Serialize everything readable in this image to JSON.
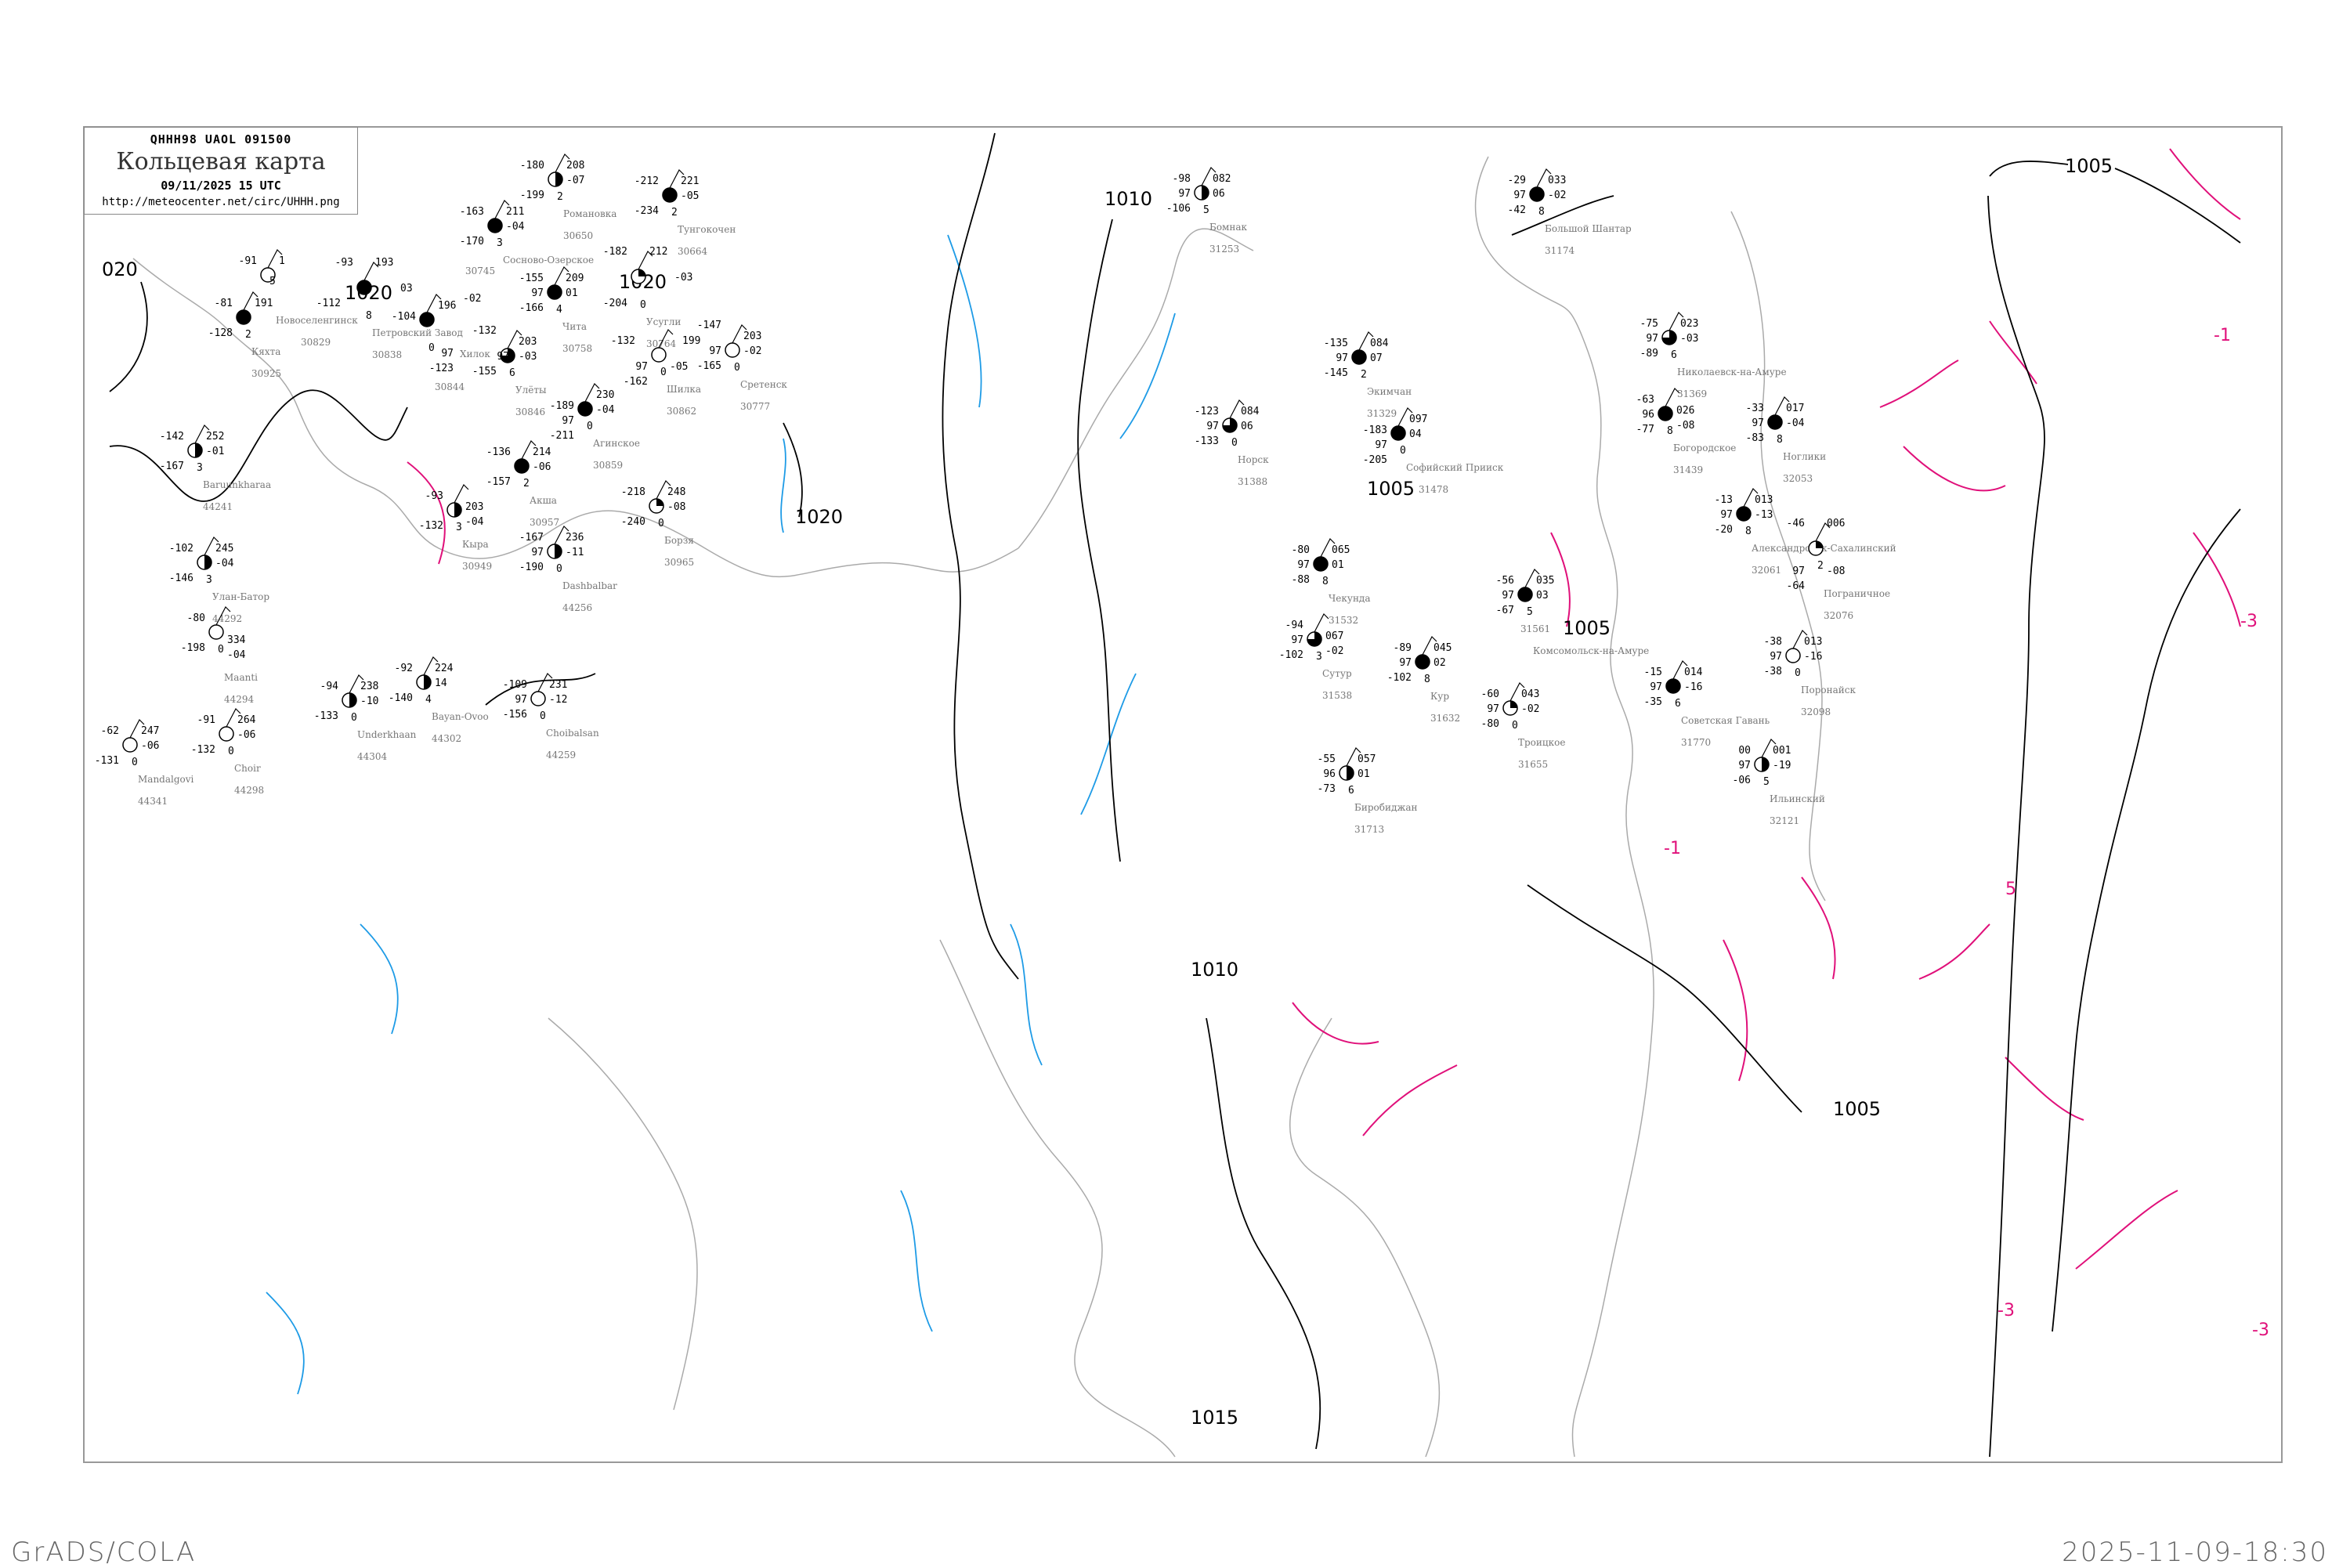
{
  "header": {
    "code": "QHHH98  UAOL  091500",
    "title": "Кольцевая карта",
    "date": "09/11/2025 15 UTC",
    "url": "http://meteocenter.net/circ/UHHH.png"
  },
  "footer": {
    "software": "GrADS/COLA",
    "timestamp": "2025-11-09-18:30"
  },
  "colors": {
    "isobar": "#000000",
    "isotherm": "#e0107a",
    "coast": "#999999",
    "rivers": "#1e9be6",
    "precip": "#3399ff"
  },
  "isobar_labels": [
    "020",
    "1020",
    "1020",
    "1020",
    "1010",
    "1005",
    "1005",
    "1010",
    "1015",
    "1005",
    "1005"
  ],
  "isotherm_labels": [
    "-1",
    "-3",
    "-1",
    "-3",
    "-3",
    "5"
  ],
  "stations": [
    {
      "name": "Кяхта",
      "id": "30925",
      "t": "-81",
      "p": "191",
      "v": "",
      "tend": "",
      "td": "-128",
      "ln": "2",
      "cover": "full"
    },
    {
      "name": "Новоселенгинск",
      "id": "30829",
      "t": "-91",
      "p": "1",
      "v": "",
      "tend": "",
      "td": "",
      "ln": "5",
      "cover": "empty"
    },
    {
      "name": "Петровский Завод",
      "id": "30838",
      "t": "-93",
      "p": "193",
      "v": "",
      "tend": "03",
      "td": "-112",
      "ln": "8",
      "cover": "full"
    },
    {
      "name": "Хилок",
      "id": "30844",
      "t": "-104",
      "p": "196",
      "v": "97",
      "tend": "-02",
      "td": "-123",
      "ln": "0",
      "cover": "full"
    },
    {
      "name": "Чита",
      "id": "30758",
      "t": "-155",
      "p": "209",
      "v": "97",
      "tend": "01",
      "td": "-166",
      "ln": "4",
      "cover": "full"
    },
    {
      "name": "Сосново-Озерское",
      "id": "30745",
      "t": "-163",
      "p": "211",
      "v": "",
      "tend": "-04",
      "td": "-170",
      "ln": "3",
      "cover": "full"
    },
    {
      "name": "Романовка",
      "id": "30650",
      "t": "-180",
      "p": "208",
      "v": "",
      "tend": "-07",
      "td": "-199",
      "ln": "2",
      "cover": "half"
    },
    {
      "name": "Тунгокочен",
      "id": "30664",
      "t": "-212",
      "p": "221",
      "v": "",
      "tend": "-05",
      "td": "-234",
      "ln": "2",
      "cover": "full"
    },
    {
      "name": "Усугли",
      "id": "30764",
      "t": "-182",
      "p": "212",
      "v": "",
      "tend": "-03",
      "td": "-204",
      "ln": "0",
      "cover": "quarter"
    },
    {
      "name": "Улёты",
      "id": "30846",
      "t": "-132",
      "p": "203",
      "v": "97",
      "tend": "-03",
      "td": "-155",
      "ln": "6",
      "cover": "three"
    },
    {
      "name": "Шилка",
      "id": "30862",
      "t": "-132",
      "p": "199",
      "v": "97",
      "tend": "-05",
      "td": "-162",
      "ln": "0",
      "cover": "empty"
    },
    {
      "name": "Сретенск",
      "id": "30777",
      "t": "-147",
      "p": "203",
      "v": "97",
      "tend": "-02",
      "td": "-165",
      "ln": "0",
      "cover": "empty"
    },
    {
      "name": "Агинское",
      "id": "30859",
      "t": "-189",
      "p": "230",
      "v": "97",
      "tend": "-04",
      "td": "-211",
      "ln": "0",
      "cover": "full"
    },
    {
      "name": "Акша",
      "id": "30957",
      "t": "-136",
      "p": "214",
      "v": "",
      "tend": "-06",
      "td": "-157",
      "ln": "2",
      "cover": "full"
    },
    {
      "name": "Кыра",
      "id": "30949",
      "t": "-93",
      "p": "203",
      "v": "",
      "tend": "-04",
      "td": "-132",
      "ln": "3",
      "cover": "half"
    },
    {
      "name": "Dashbalbar",
      "id": "44256",
      "t": "-167",
      "p": "236",
      "v": "97",
      "tend": "-11",
      "td": "-190",
      "ln": "0",
      "cover": "half"
    },
    {
      "name": "Борзя",
      "id": "30965",
      "t": "-218",
      "p": "248",
      "v": "",
      "tend": "-08",
      "td": "-240",
      "ln": "0",
      "cover": "quarter"
    },
    {
      "name": "Baruunkharaa",
      "id": "44241",
      "t": "-142",
      "p": "252",
      "v": "",
      "tend": "-01",
      "td": "-167",
      "ln": "3",
      "cover": "half"
    },
    {
      "name": "Улан-Батор",
      "id": "44292",
      "t": "-102",
      "p": "245",
      "v": "",
      "tend": "-04",
      "td": "-146",
      "ln": "3",
      "cover": "half"
    },
    {
      "name": "Maanti",
      "id": "44294",
      "t": "-80",
      "p": "334",
      "v": "",
      "tend": "-04",
      "td": "-198",
      "ln": "0",
      "cover": "empty"
    },
    {
      "name": "Underkhaan",
      "id": "44304",
      "t": "-94",
      "p": "238",
      "v": "",
      "tend": "-10",
      "td": "-133",
      "ln": "0",
      "cover": "half"
    },
    {
      "name": "Bayan-Ovoo",
      "id": "44302",
      "t": "-92",
      "p": "224",
      "v": "",
      "tend": "14",
      "td": "-140",
      "ln": "4",
      "cover": "half"
    },
    {
      "name": "Choibalsan",
      "id": "44259",
      "t": "-109",
      "p": "231",
      "v": "97",
      "tend": "-12",
      "td": "-156",
      "ln": "0",
      "cover": "empty"
    },
    {
      "name": "Mandalgovi",
      "id": "44341",
      "t": "-62",
      "p": "247",
      "v": "",
      "tend": "-06",
      "td": "-131",
      "ln": "0",
      "cover": "empty"
    },
    {
      "name": "Choir",
      "id": "44298",
      "t": "-91",
      "p": "264",
      "v": "",
      "tend": "-06",
      "td": "-132",
      "ln": "0",
      "cover": "empty"
    },
    {
      "name": "Бомнак",
      "id": "31253",
      "t": "-98",
      "p": "082",
      "v": "97",
      "tend": "06",
      "td": "-106",
      "ln": "5",
      "cover": "half"
    },
    {
      "name": "Экимчан",
      "id": "31329",
      "t": "-135",
      "p": "084",
      "v": "97",
      "tend": "07",
      "td": "-145",
      "ln": "2",
      "cover": "full"
    },
    {
      "name": "Норск",
      "id": "31388",
      "t": "-123",
      "p": "084",
      "v": "97",
      "tend": "06",
      "td": "-133",
      "ln": "0",
      "cover": "three"
    },
    {
      "name": "Большой Шантар",
      "id": "31174",
      "t": "-29",
      "p": "033",
      "v": "97",
      "tend": "-02",
      "td": "-42",
      "ln": "8",
      "cover": "full"
    },
    {
      "name": "Софийский Прииск",
      "id": "31478",
      "t": "-183",
      "p": "097",
      "v": "97",
      "tend": "04",
      "td": "-205",
      "ln": "0",
      "cover": "full"
    },
    {
      "name": "Николаевск-на-Амуре",
      "id": "31369",
      "t": "-75",
      "p": "023",
      "v": "97",
      "tend": "-03",
      "td": "-89",
      "ln": "6",
      "cover": "three"
    },
    {
      "name": "Богородское",
      "id": "31439",
      "t": "-63",
      "p": "026",
      "v": "96",
      "tend": "-08",
      "td": "-77",
      "ln": "8",
      "cover": "full"
    },
    {
      "name": "Чекунда",
      "id": "31532",
      "t": "-80",
      "p": "065",
      "v": "97",
      "tend": "01",
      "td": "-88",
      "ln": "8",
      "cover": "full"
    },
    {
      "name": "Комсомольск-на-Амуре",
      "id": "31561",
      "t": "-56",
      "p": "035",
      "v": "97",
      "tend": "03",
      "td": "-67",
      "ln": "5",
      "cover": "full"
    },
    {
      "name": "Кур",
      "id": "31632",
      "t": "-89",
      "p": "045",
      "v": "97",
      "tend": "02",
      "td": "-102",
      "ln": "8",
      "cover": "full"
    },
    {
      "name": "Сутур",
      "id": "31538",
      "t": "-94",
      "p": "067",
      "v": "97",
      "tend": "-02",
      "td": "-102",
      "ln": "3",
      "cover": "three"
    },
    {
      "name": "Биробиджан",
      "id": "31713",
      "t": "-55",
      "p": "057",
      "v": "96",
      "tend": "01",
      "td": "-73",
      "ln": "6",
      "cover": "half"
    },
    {
      "name": "Троицкое",
      "id": "31655",
      "t": "-60",
      "p": "043",
      "v": "97",
      "tend": "-02",
      "td": "-80",
      "ln": "0",
      "cover": "quarter"
    },
    {
      "name": "Советская Гавань",
      "id": "31770",
      "t": "-15",
      "p": "014",
      "v": "97",
      "tend": "-16",
      "td": "-35",
      "ln": "6",
      "cover": "full"
    },
    {
      "name": "Ноглики",
      "id": "32053",
      "t": "-33",
      "p": "017",
      "v": "97",
      "tend": "-04",
      "td": "-83",
      "ln": "8",
      "cover": "full"
    },
    {
      "name": "Александровск-Сахалинский",
      "id": "32061",
      "t": "-13",
      "p": "013",
      "v": "97",
      "tend": "-13",
      "td": "-20",
      "ln": "8",
      "cover": "full"
    },
    {
      "name": "Пограничное",
      "id": "32076",
      "t": "-46",
      "p": "006",
      "v": "97",
      "tend": "-08",
      "td": "-64",
      "ln": "2",
      "cover": "quarter"
    },
    {
      "name": "Поронайск",
      "id": "32098",
      "t": "-38",
      "p": "013",
      "v": "97",
      "tend": "-16",
      "td": "-38",
      "ln": "0",
      "cover": "empty"
    },
    {
      "name": "Ильинский",
      "id": "32121",
      "t": "00",
      "p": "001",
      "v": "97",
      "tend": "-19",
      "td": "-06",
      "ln": "5",
      "cover": "half"
    }
  ]
}
